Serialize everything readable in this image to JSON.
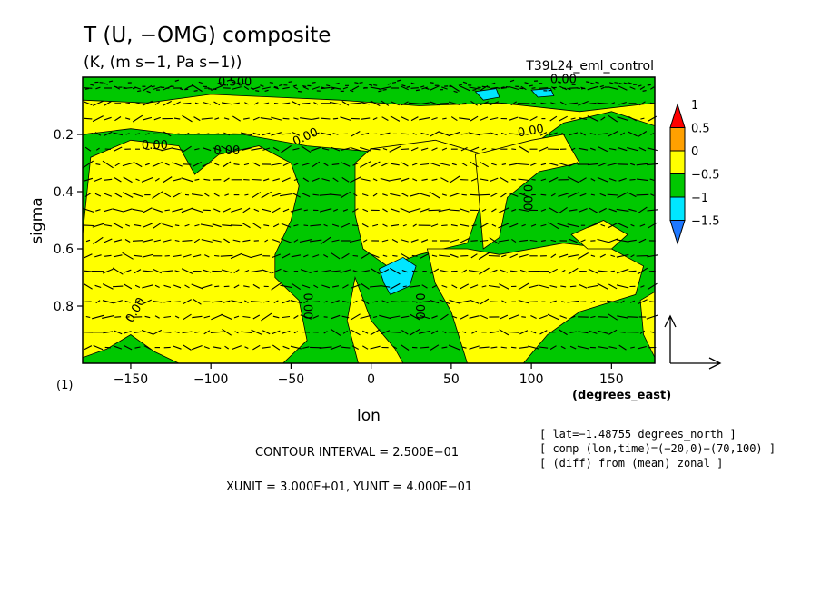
{
  "chart_data": {
    "type": "heatmap",
    "title": "T (U, −OMG) composite",
    "subtitle": "(K, (m s−1, Pa s−1))",
    "run_label": "T39L24_eml_control",
    "xlabel": "lon",
    "ylabel": "sigma",
    "x_unit_label": "(degrees_east)",
    "y_unit_label": "(1)",
    "xlim": [
      -180,
      177
    ],
    "ylim": [
      1.0,
      0.0
    ],
    "x_ticks": [
      -150,
      -100,
      -50,
      0,
      50,
      100,
      150
    ],
    "x_tick_labels": [
      "−150",
      "−100",
      "−50",
      "0",
      "50",
      "100",
      "150"
    ],
    "y_ticks": [
      0.2,
      0.4,
      0.6,
      0.8
    ],
    "y_tick_labels": [
      "0.2",
      "0.4",
      "0.6",
      "0.8"
    ],
    "colorbar": {
      "levels": [
        -1.5,
        -1,
        -0.5,
        0,
        0.5,
        1
      ],
      "labels": [
        "−1.5",
        "−1",
        "−0.5",
        "0",
        "0.5",
        "1"
      ],
      "colors": [
        "#1e78ff",
        "#00e6ff",
        "#00c800",
        "#ffff00",
        "#ffa000",
        "#ff0000"
      ]
    },
    "fill_colors": {
      "positive": "#ffff00",
      "negative": "#00c800",
      "strong_negative": "#00e6ff",
      "deep_negative": "#1e78ff"
    },
    "contour_labels": [
      "0.00",
      "0.00",
      "0.00",
      "0.00",
      "0.00",
      "0.00",
      "0.00",
      "0.00",
      "0.500",
      "0.00"
    ],
    "footer": {
      "contour_interval": "CONTOUR INTERVAL = 2.500E−01",
      "units": "XUNIT = 3.000E+01, YUNIT = 4.000E−01"
    },
    "info": [
      "[ lat=−1.48755 degrees_north ]",
      "[ comp (lon,time)=(−20,0)−(70,100) ]",
      "[ (diff) from (mean) zonal ]"
    ]
  }
}
